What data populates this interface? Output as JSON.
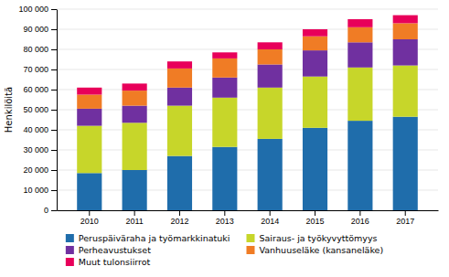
{
  "chart_data": {
    "type": "bar",
    "stacked": true,
    "categories": [
      "2010",
      "2011",
      "2012",
      "2013",
      "2014",
      "2015",
      "2016",
      "2017"
    ],
    "series": [
      {
        "name": "Peruspäiväraha ja työmarkkinatuki",
        "color": "#1F6DAB",
        "values": [
          18500,
          20000,
          27000,
          31500,
          35500,
          41000,
          44500,
          46500
        ]
      },
      {
        "name": "Sairaus- ja työkyvyttömyys",
        "color": "#C7D62A",
        "values": [
          23500,
          23500,
          25000,
          24500,
          25500,
          25500,
          26500,
          25500
        ]
      },
      {
        "name": "Perheavustukset",
        "color": "#7030A0",
        "values": [
          8500,
          8500,
          9000,
          10000,
          11500,
          13000,
          12500,
          13000
        ]
      },
      {
        "name": "Vanhuuseläke (kansaneläke)",
        "color": "#F07C25",
        "values": [
          7000,
          7500,
          9500,
          9500,
          7500,
          7000,
          7500,
          8000
        ]
      },
      {
        "name": "Muut tulonsiirrot",
        "color": "#E8005A",
        "values": [
          3500,
          3500,
          3500,
          3000,
          3500,
          3500,
          4000,
          4000
        ]
      }
    ],
    "y_label": "Henkilöitä",
    "ylim": [
      0,
      100000
    ],
    "yticks": [
      0,
      {
        "value": 10000,
        "label": "10 000"
      },
      {
        "value": 20000,
        "label": "20 000"
      },
      {
        "value": 30000,
        "label": "30 000"
      },
      {
        "value": 40000,
        "label": "40 000"
      },
      {
        "value": 50000,
        "label": "50 000"
      },
      {
        "value": 60000,
        "label": "60 000"
      },
      {
        "value": 70000,
        "label": "70 000"
      },
      {
        "value": 80000,
        "label": "80 000"
      },
      {
        "value": 90000,
        "label": "90 000"
      },
      {
        "value": 100000,
        "label": "100 000"
      }
    ],
    "grid": true,
    "legend": "bottom"
  }
}
